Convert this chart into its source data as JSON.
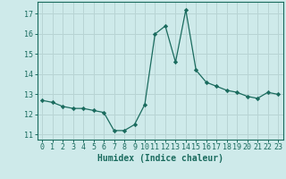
{
  "x": [
    0,
    1,
    2,
    3,
    4,
    5,
    6,
    7,
    8,
    9,
    10,
    11,
    12,
    13,
    14,
    15,
    16,
    17,
    18,
    19,
    20,
    21,
    22,
    23
  ],
  "y": [
    12.7,
    12.6,
    12.4,
    12.3,
    12.3,
    12.2,
    12.1,
    11.2,
    11.2,
    11.5,
    12.5,
    16.0,
    16.4,
    14.6,
    17.2,
    14.2,
    13.6,
    13.4,
    13.2,
    13.1,
    12.9,
    12.8,
    13.1,
    13.0
  ],
  "line_color": "#1a6b5e",
  "marker": "D",
  "marker_size": 2.2,
  "bg_color": "#ceeaea",
  "grid_color": "#b8d4d4",
  "xlabel": "Humidex (Indice chaleur)",
  "xlabel_fontsize": 7,
  "tick_fontsize": 6,
  "xlim": [
    -0.5,
    23.5
  ],
  "ylim": [
    10.75,
    17.6
  ],
  "yticks": [
    11,
    12,
    13,
    14,
    15,
    16,
    17
  ],
  "xticks": [
    0,
    1,
    2,
    3,
    4,
    5,
    6,
    7,
    8,
    9,
    10,
    11,
    12,
    13,
    14,
    15,
    16,
    17,
    18,
    19,
    20,
    21,
    22,
    23
  ]
}
